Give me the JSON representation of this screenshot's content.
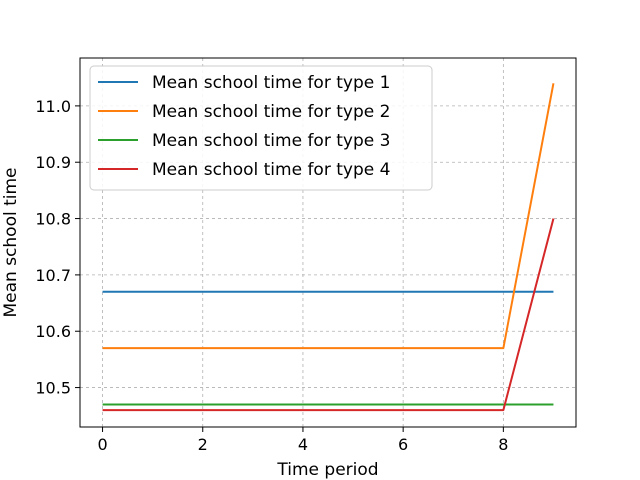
{
  "chart_data": {
    "type": "line",
    "title": "",
    "xlabel": "Time period",
    "ylabel": "Mean school time",
    "xlim": [
      -0.45,
      9.45
    ],
    "ylim": [
      10.43,
      11.085
    ],
    "xticks": [
      0,
      2,
      4,
      6,
      8
    ],
    "xtick_labels": [
      "0",
      "2",
      "4",
      "6",
      "8"
    ],
    "yticks": [
      10.5,
      10.6,
      10.7,
      10.8,
      10.9,
      11.0
    ],
    "ytick_labels": [
      "10.5",
      "10.6",
      "10.7",
      "10.8",
      "10.9",
      "11.0"
    ],
    "grid": true,
    "legend_position": "top-left",
    "x": [
      0,
      1,
      2,
      3,
      4,
      5,
      6,
      7,
      8,
      9
    ],
    "series": [
      {
        "name": "Mean school time for type 1",
        "color": "#1f77b4",
        "values": [
          10.67,
          10.67,
          10.67,
          10.67,
          10.67,
          10.67,
          10.67,
          10.67,
          10.67,
          10.67
        ]
      },
      {
        "name": "Mean school time for type 2",
        "color": "#ff7f0e",
        "values": [
          10.57,
          10.57,
          10.57,
          10.57,
          10.57,
          10.57,
          10.57,
          10.57,
          10.57,
          11.04
        ]
      },
      {
        "name": "Mean school time for type 3",
        "color": "#2ca02c",
        "values": [
          10.47,
          10.47,
          10.47,
          10.47,
          10.47,
          10.47,
          10.47,
          10.47,
          10.47,
          10.47
        ]
      },
      {
        "name": "Mean school time for type 4",
        "color": "#d62728",
        "values": [
          10.46,
          10.46,
          10.46,
          10.46,
          10.46,
          10.46,
          10.46,
          10.46,
          10.46,
          10.8
        ]
      }
    ]
  }
}
